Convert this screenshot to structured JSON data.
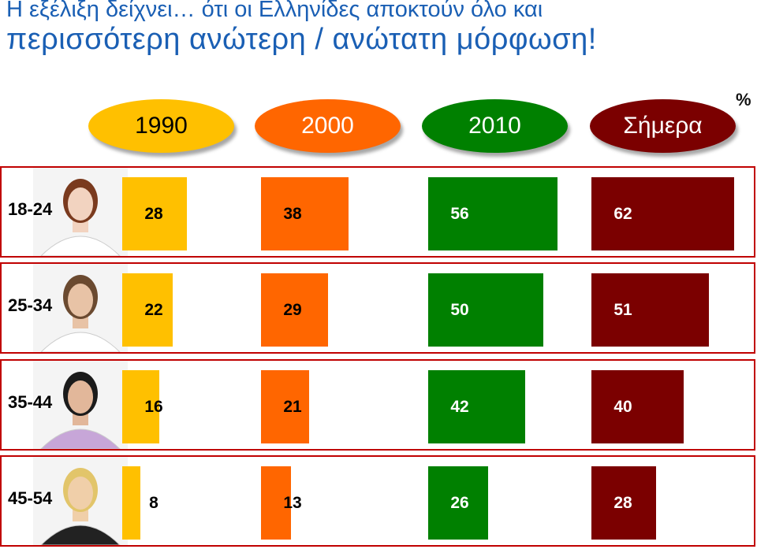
{
  "title": {
    "line1": "Η εξέλιξη δείχνει… ότι οι Ελληνίδες αποκτούν όλο και",
    "line2": "περισσότερη ανώτερη / ανώτατη μόρφωση!"
  },
  "unit": "%",
  "colors": {
    "1990": "#ffc000",
    "2000": "#ff6600",
    "2010": "#008000",
    "today": "#7b0000",
    "title": "#1a5fb4",
    "row_border": "#c00000"
  },
  "chart_data": {
    "type": "bar",
    "title": "Η εξέλιξη δείχνει… ότι οι Ελληνίδες αποκτούν όλο και περισσότερη ανώτερη / ανώτατη μόρφωση!",
    "unit": "%",
    "categories": [
      "18-24",
      "25-34",
      "35-44",
      "45-54"
    ],
    "series": [
      {
        "name": "1990",
        "color": "#ffc000",
        "values": [
          28,
          22,
          16,
          8
        ]
      },
      {
        "name": "2000",
        "color": "#ff6600",
        "values": [
          38,
          29,
          21,
          13
        ]
      },
      {
        "name": "2010",
        "color": "#008000",
        "values": [
          56,
          50,
          42,
          26
        ]
      },
      {
        "name": "Σήμερα",
        "color": "#7b0000",
        "values": [
          62,
          51,
          40,
          28
        ]
      }
    ]
  }
}
